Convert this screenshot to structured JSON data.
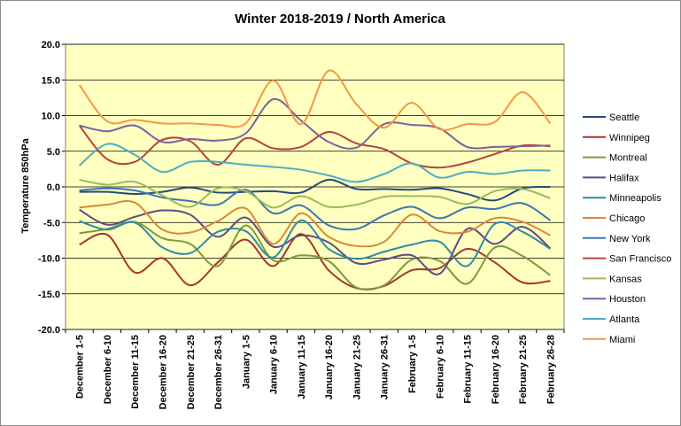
{
  "chart_data": {
    "type": "line",
    "title": "Winter 2018-2019 / North America",
    "xlabel": "",
    "ylabel": "Temperature 850hPa",
    "ylim": [
      -20,
      20
    ],
    "yticks": [
      "-20.0",
      "-15.0",
      "-10.0",
      "-5.0",
      "0.0",
      "5.0",
      "10.0",
      "15.0",
      "20.0"
    ],
    "grid": true,
    "legend": "right",
    "plot_background": "#ffffc0",
    "categories": [
      "December 1-5",
      "December 6-10",
      "December 11-15",
      "December 16-20",
      "December 21-25",
      "December 26-31",
      "January 1-5",
      "January 6-10",
      "January 11-15",
      "January 16-20",
      "January 21-25",
      "January 26-31",
      "February 1-5",
      "February 6-10",
      "February 11-15",
      "February 16-20",
      "February 21-25",
      "February 26-28"
    ],
    "series": [
      {
        "name": "Seattle",
        "color": "#244a7c",
        "values": [
          -0.7,
          -0.7,
          -1.0,
          -0.7,
          -0.1,
          -0.8,
          -0.7,
          -0.6,
          -0.8,
          1.0,
          -0.3,
          -0.3,
          -0.4,
          -0.2,
          -1.0,
          -1.9,
          -0.2,
          0.0
        ]
      },
      {
        "name": "Winnipeg",
        "color": "#a6342e",
        "values": [
          -8.1,
          -6.7,
          -12.0,
          -10.0,
          -13.8,
          -10.6,
          -7.4,
          -11.1,
          -6.6,
          -11.7,
          -14.2,
          -13.9,
          -11.7,
          -11.4,
          -8.7,
          -10.6,
          -13.4,
          -13.2
        ]
      },
      {
        "name": "Montreal",
        "color": "#7e9a3c",
        "values": [
          -6.5,
          -5.9,
          -4.9,
          -7.2,
          -8.0,
          -11.1,
          -5.4,
          -10.3,
          -9.6,
          -10.4,
          -14.1,
          -13.8,
          -10.2,
          -10.4,
          -13.6,
          -8.5,
          -9.7,
          -12.4
        ]
      },
      {
        "name": "Halifax",
        "color": "#614a86",
        "values": [
          -3.2,
          -5.3,
          -4.2,
          -3.3,
          -3.9,
          -7.0,
          -4.3,
          -8.4,
          -6.8,
          -7.8,
          -10.7,
          -10.2,
          -9.6,
          -12.2,
          -5.9,
          -8.0,
          -5.6,
          -8.6
        ]
      },
      {
        "name": "Minneapolis",
        "color": "#2f8ba8",
        "values": [
          -4.8,
          -6.0,
          -5.0,
          -8.5,
          -9.3,
          -6.3,
          -6.2,
          -9.9,
          -4.7,
          -8.7,
          -10.1,
          -9.1,
          -8.1,
          -7.7,
          -11.1,
          -5.2,
          -6.3,
          -8.7
        ]
      },
      {
        "name": "Chicago",
        "color": "#d9893a",
        "values": [
          -2.9,
          -2.5,
          -2.2,
          -6.0,
          -6.4,
          -4.8,
          -3.0,
          -8.0,
          -3.7,
          -7.0,
          -8.3,
          -7.7,
          -3.9,
          -6.2,
          -6.3,
          -4.4,
          -4.9,
          -6.8
        ]
      },
      {
        "name": "New York",
        "color": "#3d75b8",
        "values": [
          -0.5,
          -0.2,
          -0.5,
          -1.5,
          -2.0,
          -2.5,
          -0.4,
          -3.7,
          -2.6,
          -5.4,
          -5.9,
          -4.0,
          -2.8,
          -4.4,
          -2.9,
          -3.1,
          -2.3,
          -4.7
        ]
      },
      {
        "name": "San Francisco",
        "color": "#b8423b",
        "values": [
          8.6,
          3.9,
          3.5,
          6.6,
          6.4,
          3.1,
          6.8,
          5.4,
          5.6,
          7.7,
          6.1,
          5.3,
          3.3,
          2.7,
          3.4,
          4.6,
          5.8,
          5.7
        ]
      },
      {
        "name": "Kansas",
        "color": "#9bbb59",
        "values": [
          1.0,
          0.3,
          0.7,
          -1.2,
          -2.8,
          -0.2,
          -0.6,
          -2.9,
          -1.3,
          -2.8,
          -2.5,
          -1.4,
          -1.3,
          -1.4,
          -2.4,
          -0.6,
          -0.3,
          -1.6
        ]
      },
      {
        "name": "Houston",
        "color": "#7d60a0",
        "values": [
          8.6,
          7.8,
          8.6,
          6.3,
          6.7,
          6.5,
          7.5,
          12.3,
          9.3,
          6.3,
          5.5,
          8.8,
          8.7,
          8.2,
          5.6,
          5.6,
          5.7,
          5.8
        ]
      },
      {
        "name": "Atlanta",
        "color": "#4bacc6",
        "values": [
          3.0,
          6.0,
          4.5,
          2.1,
          3.5,
          3.5,
          3.1,
          2.8,
          2.4,
          1.6,
          0.7,
          1.8,
          3.3,
          1.3,
          2.1,
          1.8,
          2.3,
          2.3
        ]
      },
      {
        "name": "Miami",
        "color": "#f79646",
        "values": [
          14.3,
          9.2,
          9.4,
          8.9,
          8.9,
          8.7,
          8.9,
          14.9,
          8.8,
          16.3,
          11.6,
          8.3,
          11.8,
          8.1,
          8.8,
          9.1,
          13.3,
          8.9
        ]
      }
    ]
  }
}
